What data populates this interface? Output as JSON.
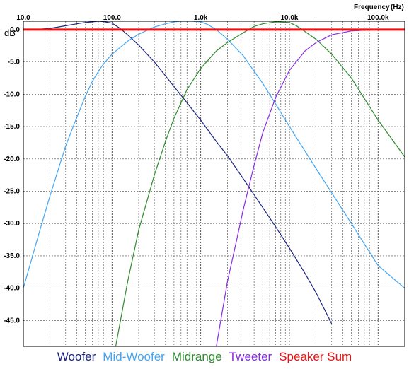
{
  "chart_data": {
    "type": "line",
    "xlabel": "Frequency",
    "xunit": "(Hz)",
    "ylabel": "dB",
    "xscale": "log",
    "xlim": [
      10,
      200000
    ],
    "ylim": [
      -49,
      1.3
    ],
    "grid": true,
    "x_tick_labels": [
      {
        "value": 10,
        "label": "10.0"
      },
      {
        "value": 100,
        "label": "100.0"
      },
      {
        "value": 1000,
        "label": "1.0k"
      },
      {
        "value": 10000,
        "label": "10.0k"
      },
      {
        "value": 100000,
        "label": "100.0k"
      }
    ],
    "y_ticks": [
      0,
      -5,
      -10,
      -15,
      -20,
      -25,
      -30,
      -35,
      -40,
      -45
    ],
    "y_tick_labels": [
      "0.0",
      "-5.0",
      "-10.0",
      "-15.0",
      "-20.0",
      "-25.0",
      "-30.0",
      "-35.0",
      "-40.0",
      "-45.0"
    ],
    "legend_position": "bottom",
    "series": [
      {
        "name": "Woofer",
        "color": "#1a237e",
        "x": [
          15,
          20,
          30,
          40,
          50,
          60,
          70,
          80,
          100,
          120,
          150,
          200,
          300,
          500,
          700,
          1000,
          1500,
          2000,
          3000,
          5000,
          7000,
          10000,
          15000,
          20000,
          30000
        ],
        "y": [
          0.05,
          0.2,
          0.6,
          0.9,
          1.1,
          1.2,
          1.3,
          1.25,
          1.0,
          0.3,
          -0.8,
          -2.4,
          -5.0,
          -8.8,
          -11.3,
          -14.0,
          -17.3,
          -19.5,
          -23.0,
          -27.5,
          -30.5,
          -33.8,
          -37.7,
          -40.7,
          -45.5
        ]
      },
      {
        "name": "Mid-Woofer",
        "color": "#42a5f5",
        "x": [
          10,
          15,
          20,
          30,
          40,
          50,
          60,
          70,
          80,
          100,
          150,
          200,
          300,
          400,
          500,
          600,
          800,
          1000,
          1200,
          1500,
          2000,
          3000,
          5000,
          7000,
          10000,
          20000,
          50000,
          100000,
          200000
        ],
        "y": [
          -40.0,
          -31.5,
          -25.7,
          -18.0,
          -13.6,
          -10.3,
          -8.0,
          -6.5,
          -5.3,
          -3.8,
          -1.8,
          -0.7,
          0.4,
          0.9,
          1.2,
          1.3,
          1.3,
          1.2,
          0.8,
          0.0,
          -1.5,
          -4.0,
          -8.3,
          -11.5,
          -15.0,
          -21.5,
          -30.0,
          -36.5,
          -40.0
        ]
      },
      {
        "name": "Midrange",
        "color": "#2e8b2e",
        "x": [
          110,
          150,
          200,
          300,
          400,
          500,
          700,
          1000,
          1500,
          2000,
          3000,
          4000,
          5000,
          7000,
          10000,
          12000,
          15000,
          20000,
          30000,
          50000,
          100000,
          200000
        ],
        "y": [
          -49.0,
          -39.0,
          -31.0,
          -22.5,
          -17.3,
          -13.7,
          -9.3,
          -6.0,
          -3.3,
          -2.0,
          -0.5,
          0.5,
          0.9,
          1.2,
          1.1,
          0.6,
          -0.3,
          -1.5,
          -3.8,
          -7.5,
          -14.0,
          -19.7
        ]
      },
      {
        "name": "Tweeter",
        "color": "#8a2be2",
        "x": [
          1500,
          2000,
          2500,
          3000,
          4000,
          5000,
          7000,
          10000,
          15000,
          20000,
          30000,
          50000,
          100000,
          130000
        ],
        "y": [
          -49.0,
          -39.0,
          -33.0,
          -28.0,
          -21.0,
          -16.0,
          -10.5,
          -6.3,
          -3.3,
          -2.0,
          -0.8,
          -0.2,
          0.0,
          0.0
        ]
      },
      {
        "name": "Speaker Sum",
        "color": "#ee1111",
        "x": [
          10,
          200000
        ],
        "y": [
          0.0,
          0.0
        ]
      }
    ]
  }
}
